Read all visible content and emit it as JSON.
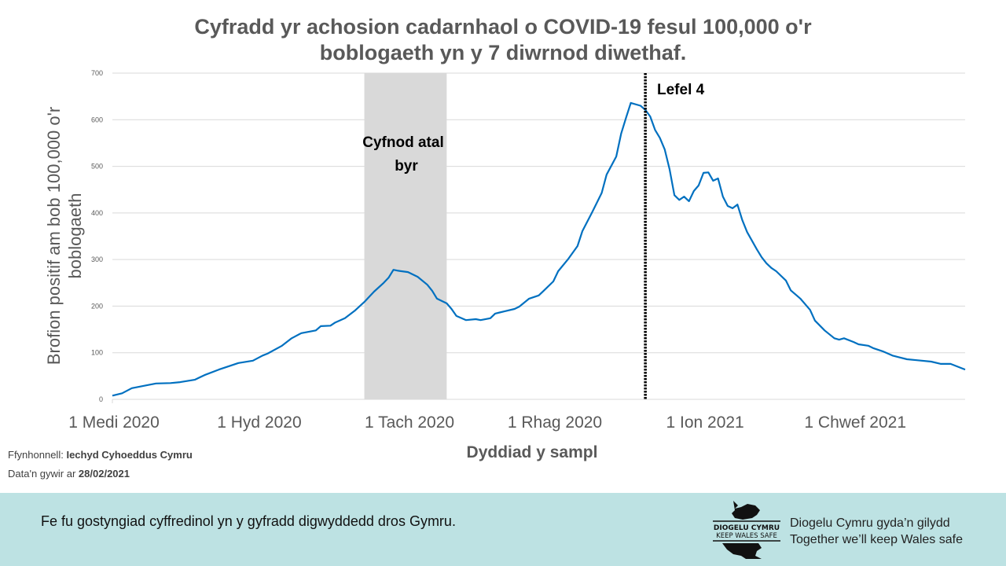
{
  "title_lines": [
    "Cyfradd yr achosion cadarnhaol o COVID-19 fesul 100,000 o'r",
    "boblogaeth yn y 7 diwrnod diwethaf."
  ],
  "source": {
    "label": "Ffynhonnell:",
    "value": "Iechyd Cyhoeddus Cymru"
  },
  "data_date": {
    "label": "Data'n gywir ar",
    "value": "28/02/2021"
  },
  "footer": {
    "message": "Fe fu gostyngiad cyffredinol yn y gyfradd digwyddedd dros Gymru.",
    "logo_text": [
      "DIOGELU CYMRU",
      "KEEP WALES SAFE"
    ],
    "slogan": [
      "Diogelu Cymru gyda’n gilydd",
      "Together we’ll keep Wales safe"
    ],
    "background": "#bde2e3"
  },
  "chart_data": {
    "type": "line",
    "xlabel": "Dyddiad y sampl",
    "ylabel_lines": [
      "Brofion positif  am bob 100,000 o'r",
      "boblogaeth"
    ],
    "ylim": [
      0,
      700
    ],
    "yticks": [
      0,
      100,
      200,
      300,
      400,
      500,
      600,
      700
    ],
    "xlim": [
      "2020-09-01",
      "2021-02-24"
    ],
    "xticks": [
      {
        "date": "2020-09-01",
        "label": "1 Medi 2020"
      },
      {
        "date": "2020-10-01",
        "label": "1 Hyd 2020"
      },
      {
        "date": "2020-11-01",
        "label": "1 Tach 2020"
      },
      {
        "date": "2020-12-01",
        "label": "1 Rhag 2020"
      },
      {
        "date": "2021-01-01",
        "label": "1 Ion 2021"
      },
      {
        "date": "2021-02-01",
        "label": "1 Chwef 2021"
      }
    ],
    "grid": "horizontal",
    "line_color": "#0070c0",
    "shaded_period": {
      "start": "2020-10-23",
      "end": "2020-11-09",
      "label_lines": [
        "Cyfnod atal",
        "byr"
      ],
      "color": "#d9d9d9"
    },
    "vline": {
      "date": "2020-12-20",
      "label": "Lefel 4"
    },
    "points": [
      [
        "2020-09-01",
        8
      ],
      [
        "2020-09-03",
        13
      ],
      [
        "2020-09-05",
        24
      ],
      [
        "2020-09-08",
        30
      ],
      [
        "2020-09-10",
        34
      ],
      [
        "2020-09-13",
        35
      ],
      [
        "2020-09-15",
        37
      ],
      [
        "2020-09-18",
        42
      ],
      [
        "2020-09-20",
        52
      ],
      [
        "2020-09-23",
        64
      ],
      [
        "2020-09-25",
        71
      ],
      [
        "2020-09-27",
        78
      ],
      [
        "2020-09-30",
        83
      ],
      [
        "2020-10-02",
        94
      ],
      [
        "2020-10-03",
        98
      ],
      [
        "2020-10-06",
        115
      ],
      [
        "2020-10-08",
        131
      ],
      [
        "2020-10-10",
        142
      ],
      [
        "2020-10-13",
        148
      ],
      [
        "2020-10-14",
        157
      ],
      [
        "2020-10-16",
        158
      ],
      [
        "2020-10-17",
        165
      ],
      [
        "2020-10-19",
        174
      ],
      [
        "2020-10-21",
        190
      ],
      [
        "2020-10-23",
        209
      ],
      [
        "2020-10-25",
        231
      ],
      [
        "2020-10-27",
        250
      ],
      [
        "2020-10-28",
        261
      ],
      [
        "2020-10-29",
        278
      ],
      [
        "2020-10-30",
        276
      ],
      [
        "2020-11-01",
        273
      ],
      [
        "2020-11-03",
        263
      ],
      [
        "2020-11-05",
        246
      ],
      [
        "2020-11-06",
        233
      ],
      [
        "2020-11-07",
        216
      ],
      [
        "2020-11-09",
        206
      ],
      [
        "2020-11-10",
        194
      ],
      [
        "2020-11-11",
        179
      ],
      [
        "2020-11-13",
        170
      ],
      [
        "2020-11-15",
        172
      ],
      [
        "2020-11-16",
        170
      ],
      [
        "2020-11-18",
        174
      ],
      [
        "2020-11-19",
        184
      ],
      [
        "2020-11-21",
        189
      ],
      [
        "2020-11-23",
        194
      ],
      [
        "2020-11-24",
        199
      ],
      [
        "2020-11-26",
        216
      ],
      [
        "2020-11-28",
        223
      ],
      [
        "2020-11-29",
        233
      ],
      [
        "2020-12-01",
        253
      ],
      [
        "2020-12-02",
        275
      ],
      [
        "2020-12-04",
        300
      ],
      [
        "2020-12-06",
        329
      ],
      [
        "2020-12-07",
        361
      ],
      [
        "2020-12-09",
        401
      ],
      [
        "2020-12-11",
        443
      ],
      [
        "2020-12-12",
        482
      ],
      [
        "2020-12-14",
        521
      ],
      [
        "2020-12-15",
        570
      ],
      [
        "2020-12-16",
        604
      ],
      [
        "2020-12-17",
        636
      ],
      [
        "2020-12-19",
        630
      ],
      [
        "2020-12-20",
        621
      ],
      [
        "2020-12-21",
        607
      ],
      [
        "2020-12-22",
        578
      ],
      [
        "2020-12-23",
        561
      ],
      [
        "2020-12-24",
        536
      ],
      [
        "2020-12-25",
        494
      ],
      [
        "2020-12-26",
        438
      ],
      [
        "2020-12-27",
        428
      ],
      [
        "2020-12-28",
        435
      ],
      [
        "2020-12-29",
        425
      ],
      [
        "2020-12-30",
        447
      ],
      [
        "2020-12-31",
        459
      ],
      [
        "2021-01-01",
        486
      ],
      [
        "2021-01-02",
        487
      ],
      [
        "2021-01-03",
        469
      ],
      [
        "2021-01-04",
        474
      ],
      [
        "2021-01-05",
        435
      ],
      [
        "2021-01-06",
        415
      ],
      [
        "2021-01-07",
        410
      ],
      [
        "2021-01-08",
        418
      ],
      [
        "2021-01-09",
        385
      ],
      [
        "2021-01-10",
        359
      ],
      [
        "2021-01-12",
        322
      ],
      [
        "2021-01-13",
        305
      ],
      [
        "2021-01-14",
        292
      ],
      [
        "2021-01-15",
        282
      ],
      [
        "2021-01-16",
        275
      ],
      [
        "2021-01-18",
        255
      ],
      [
        "2021-01-19",
        234
      ],
      [
        "2021-01-21",
        216
      ],
      [
        "2021-01-23",
        192
      ],
      [
        "2021-01-24",
        169
      ],
      [
        "2021-01-26",
        148
      ],
      [
        "2021-01-28",
        131
      ],
      [
        "2021-01-29",
        128
      ],
      [
        "2021-01-30",
        131
      ],
      [
        "2021-02-01",
        123
      ],
      [
        "2021-02-02",
        118
      ],
      [
        "2021-02-04",
        115
      ],
      [
        "2021-02-05",
        110
      ],
      [
        "2021-02-07",
        103
      ],
      [
        "2021-02-09",
        94
      ],
      [
        "2021-02-12",
        86
      ],
      [
        "2021-02-14",
        84
      ],
      [
        "2021-02-17",
        81
      ],
      [
        "2021-02-19",
        76
      ],
      [
        "2021-02-21",
        76
      ],
      [
        "2021-02-24",
        64
      ]
    ]
  }
}
